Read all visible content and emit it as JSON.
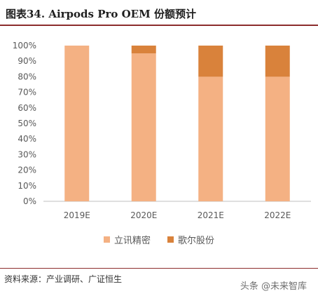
{
  "header": {
    "title": "图表34.  Airpods Pro OEM 份额预计"
  },
  "chart_data": {
    "type": "bar",
    "stacked": true,
    "categories": [
      "2019E",
      "2020E",
      "2021E",
      "2022E"
    ],
    "series": [
      {
        "name": "立讯精密",
        "values": [
          100,
          95,
          80,
          80
        ],
        "color": "#F4B183"
      },
      {
        "name": "歌尔股份",
        "values": [
          0,
          5,
          20,
          20
        ],
        "color": "#D9823B"
      }
    ],
    "ylim": [
      0,
      100
    ],
    "yticks": [
      "0%",
      "10%",
      "20%",
      "30%",
      "40%",
      "50%",
      "60%",
      "70%",
      "80%",
      "90%",
      "100%"
    ],
    "grid": false,
    "legend": "bottom"
  },
  "footer": {
    "source": "资料来源：产业调研、广证恒生"
  },
  "watermark": {
    "text": "头条 @未来智库"
  }
}
